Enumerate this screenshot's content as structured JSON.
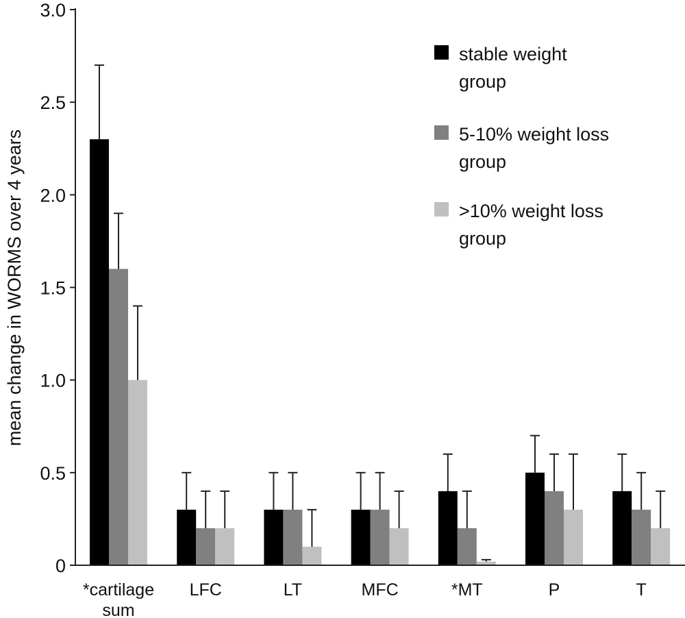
{
  "chart_data": {
    "type": "bar",
    "title": "",
    "xlabel": "",
    "ylabel": "mean change in WORMS over 4 years",
    "ylim": [
      0,
      3.0
    ],
    "yticks": [
      {
        "value": 0,
        "label": "0"
      },
      {
        "value": 0.5,
        "label": "0.5"
      },
      {
        "value": 1.0,
        "label": "1.0"
      },
      {
        "value": 1.5,
        "label": "1.5"
      },
      {
        "value": 2.0,
        "label": "2.0"
      },
      {
        "value": 2.5,
        "label": "2.5"
      },
      {
        "value": 3.0,
        "label": "3.0"
      }
    ],
    "categories": [
      [
        "*cartilage",
        "sum"
      ],
      [
        "LFC"
      ],
      [
        "LT"
      ],
      [
        "MFC"
      ],
      [
        "*MT"
      ],
      [
        "P"
      ],
      [
        "T"
      ]
    ],
    "series": [
      {
        "name_lines": [
          "stable weight",
          "group"
        ],
        "color": "#000000",
        "values": [
          2.3,
          0.3,
          0.3,
          0.3,
          0.4,
          0.5,
          0.4
        ],
        "error_upper": [
          2.7,
          0.5,
          0.5,
          0.5,
          0.6,
          0.7,
          0.6
        ]
      },
      {
        "name_lines": [
          "5-10% weight loss",
          "group"
        ],
        "color": "#808080",
        "values": [
          1.6,
          0.2,
          0.3,
          0.3,
          0.2,
          0.4,
          0.3
        ],
        "error_upper": [
          1.9,
          0.4,
          0.5,
          0.5,
          0.4,
          0.6,
          0.5
        ]
      },
      {
        "name_lines": [
          ">10% weight loss",
          "group"
        ],
        "color": "#c0c0c0",
        "values": [
          1.0,
          0.2,
          0.1,
          0.2,
          0.02,
          0.3,
          0.2
        ],
        "error_upper": [
          1.4,
          0.4,
          0.3,
          0.4,
          0.03,
          0.6,
          0.4
        ]
      }
    ],
    "legend_position": "top-right",
    "grid": false
  }
}
